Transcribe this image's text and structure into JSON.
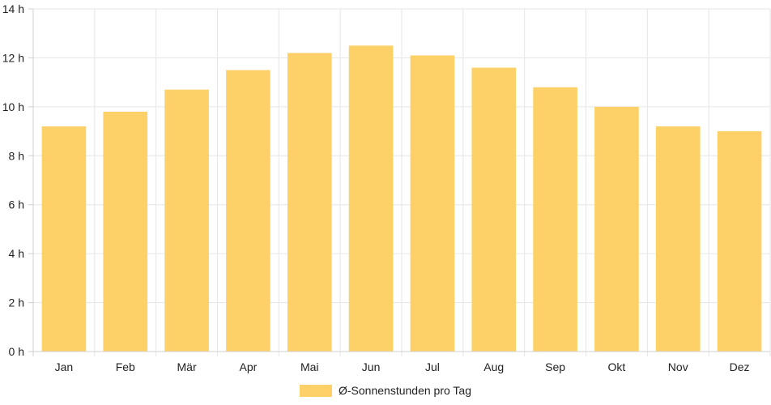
{
  "chart_data": {
    "type": "bar",
    "categories": [
      "Jan",
      "Feb",
      "Mär",
      "Apr",
      "Mai",
      "Jun",
      "Jul",
      "Aug",
      "Sep",
      "Okt",
      "Nov",
      "Dez"
    ],
    "series": [
      {
        "name": "Ø-Sonnenstunden pro Tag",
        "values": [
          9.2,
          9.8,
          10.7,
          11.5,
          12.2,
          12.5,
          12.1,
          11.6,
          10.8,
          10.0,
          9.2,
          9.0
        ]
      }
    ],
    "y_ticks": [
      "0 h",
      "2 h",
      "4 h",
      "6 h",
      "8 h",
      "10 h",
      "12 h",
      "14 h"
    ],
    "ylim": [
      0,
      14
    ],
    "grid": true,
    "legend_position": "bottom",
    "colors": {
      "bar": "#fdd068",
      "grid": "#e6e6e6",
      "axis": "#d0d0d0",
      "text": "#222222"
    }
  }
}
